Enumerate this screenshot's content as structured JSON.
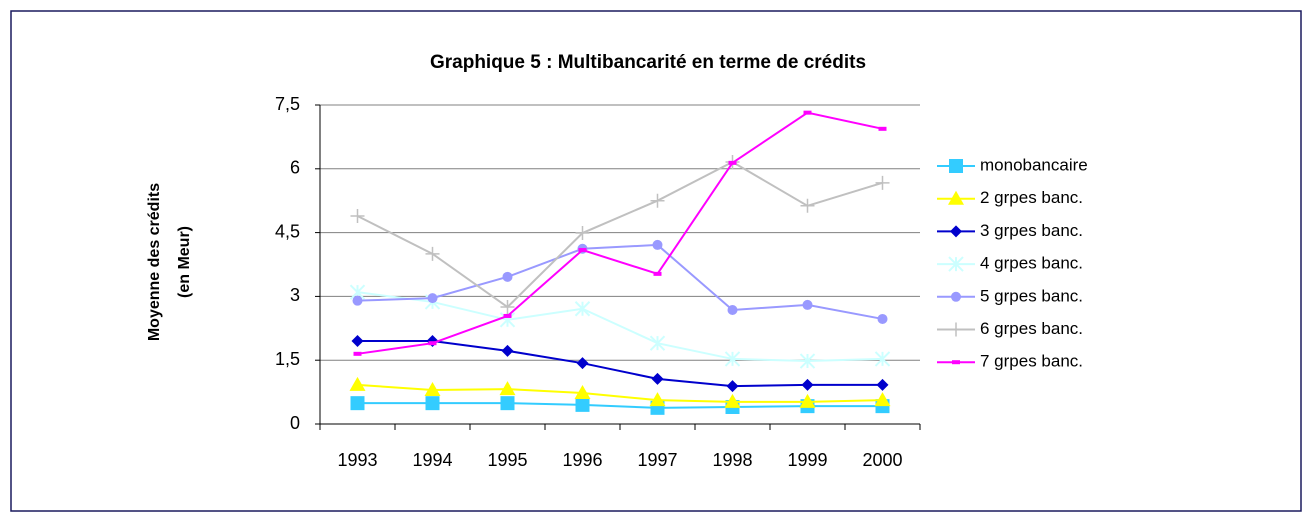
{
  "chart_data": {
    "type": "line",
    "title": "Graphique 5 : Multibancarité en terme de crédits",
    "y_label": [
      "Moyenne des crédits",
      "(en Meur)"
    ],
    "categories": [
      "1993",
      "1994",
      "1995",
      "1996",
      "1997",
      "1998",
      "1999",
      "2000"
    ],
    "ylim": [
      0,
      7.5
    ],
    "yticks": [
      0,
      {
        "value": 1.5,
        "label": "1,5"
      },
      3,
      {
        "value": 4.5,
        "label": "4,5"
      },
      6,
      {
        "value": 7.5,
        "label": "7,5"
      }
    ],
    "grid": true,
    "legend": "right",
    "series": [
      {
        "name": "monobancaire",
        "color": "#33ccff",
        "marker": "square",
        "values": [
          0.49,
          0.49,
          0.49,
          0.45,
          0.38,
          0.4,
          0.42,
          0.42
        ]
      },
      {
        "name": "2 grpes banc.",
        "color": "#ffff00",
        "marker": "triangle",
        "values": [
          0.92,
          0.8,
          0.82,
          0.73,
          0.56,
          0.52,
          0.52,
          0.56
        ]
      },
      {
        "name": "3 grpes banc.",
        "color": "#0000cc",
        "marker": "diamond",
        "values": [
          1.95,
          1.95,
          1.72,
          1.43,
          1.06,
          0.89,
          0.92,
          0.92
        ]
      },
      {
        "name": "4 grpes banc.",
        "color": "#ccffff",
        "marker": "asterisk",
        "values": [
          3.1,
          2.87,
          2.45,
          2.71,
          1.9,
          1.53,
          1.48,
          1.53
        ]
      },
      {
        "name": "5 grpes banc.",
        "color": "#9999ff",
        "marker": "circle",
        "values": [
          2.9,
          2.96,
          3.46,
          4.12,
          4.21,
          2.68,
          2.8,
          2.47
        ]
      },
      {
        "name": "6 grpes banc.",
        "color": "#c0c0c0",
        "marker": "plus",
        "values": [
          4.89,
          4.0,
          2.75,
          4.49,
          5.25,
          6.16,
          5.13,
          5.67
        ]
      },
      {
        "name": "7 grpes banc.",
        "color": "#ff00ff",
        "marker": "dash",
        "values": [
          1.65,
          1.9,
          2.54,
          4.09,
          3.53,
          6.14,
          7.32,
          6.94
        ]
      }
    ]
  }
}
